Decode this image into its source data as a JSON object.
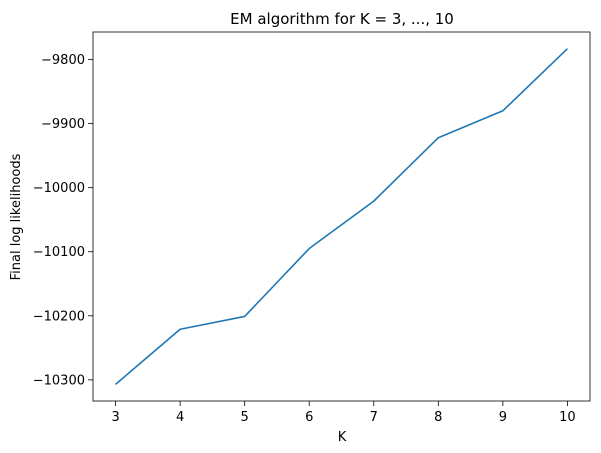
{
  "chart_data": {
    "type": "line",
    "title": "EM algorithm for K = 3, ..., 10",
    "xlabel": "K",
    "ylabel": "Final log likelihoods",
    "x": [
      3,
      4,
      5,
      6,
      7,
      8,
      9,
      10
    ],
    "series": [
      {
        "values": [
          -10307,
          -10221,
          -10201,
          -10095,
          -10021,
          -9922,
          -9880,
          -9783
        ],
        "color": "#1f77b4"
      }
    ],
    "xlim": [
      2.65,
      10.35
    ],
    "ylim": [
      -10333,
      -9757
    ],
    "xticks": [
      3,
      4,
      5,
      6,
      7,
      8,
      9,
      10
    ],
    "yticks": [
      -10300,
      -10200,
      -10100,
      -10000,
      -9900,
      -9800
    ],
    "ytick_labels": [
      "−10300",
      "−10200",
      "−10100",
      "−10000",
      "−9900",
      "−9800"
    ],
    "grid": false
  }
}
